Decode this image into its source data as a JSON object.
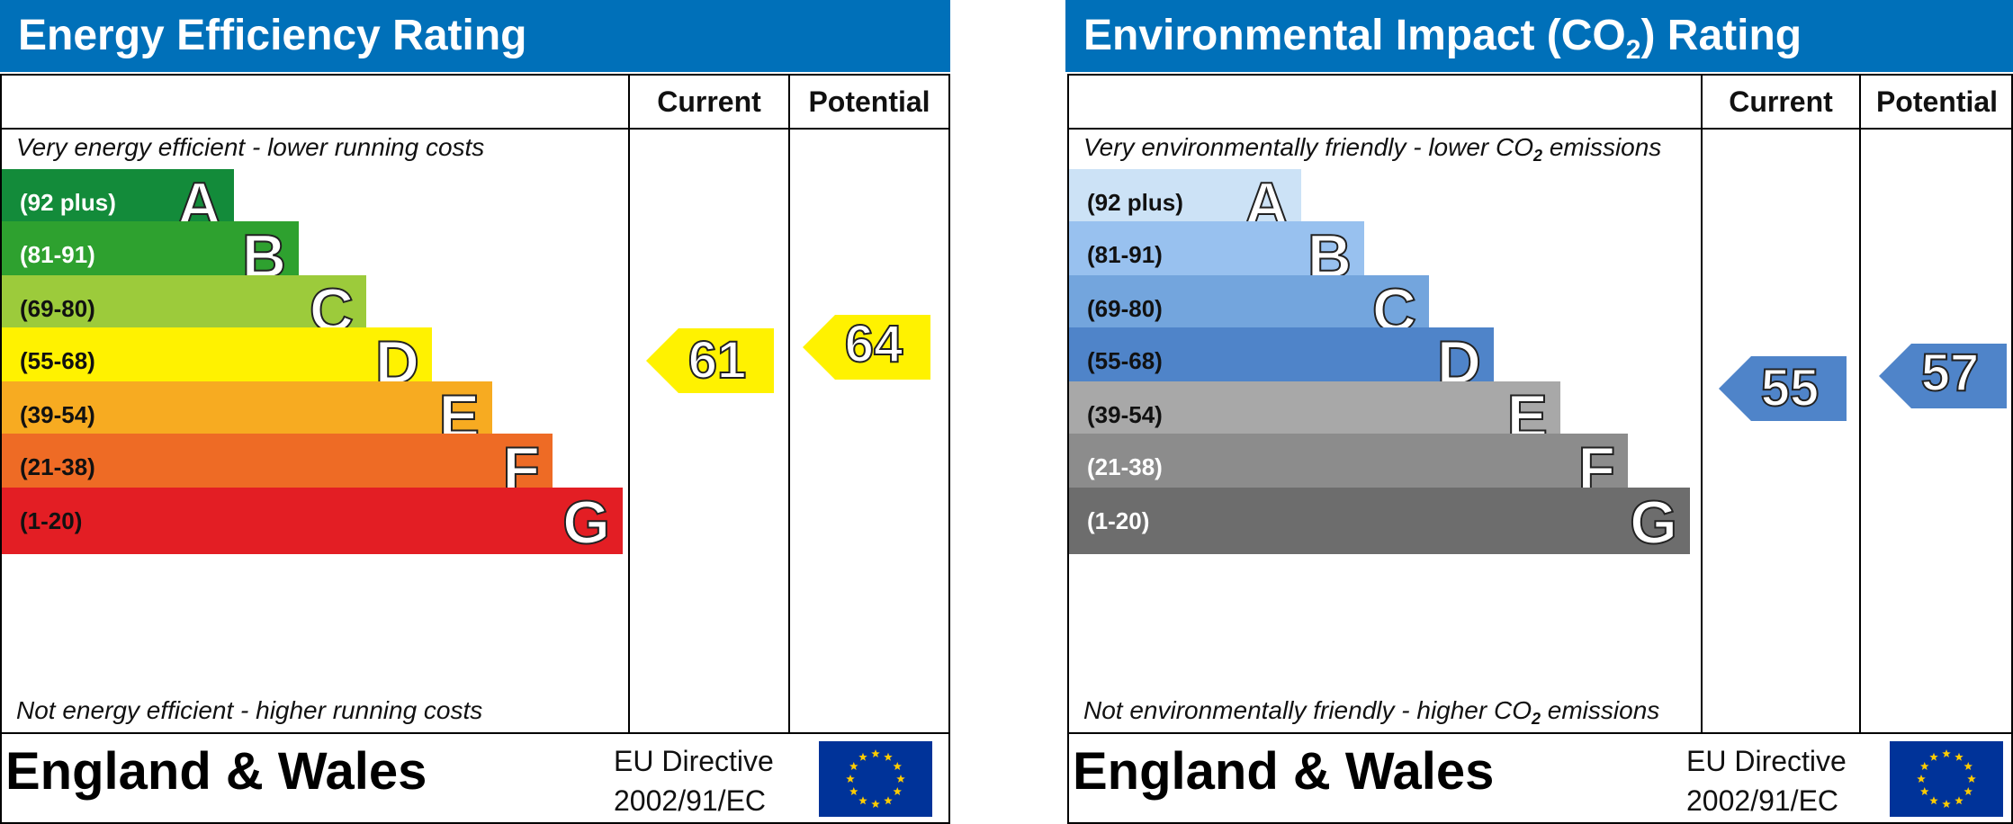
{
  "chart_data": [
    {
      "type": "bar",
      "title": "Energy Efficiency Rating",
      "columns": [
        "Current",
        "Potential"
      ],
      "top_caption": "Very energy efficient - lower running costs",
      "bottom_caption": "Not energy efficient - higher running costs",
      "bands": [
        {
          "range": "(92 plus)",
          "letter": "A",
          "color": "#138b3a",
          "text_color": "#ffffff"
        },
        {
          "range": "(81-91)",
          "letter": "B",
          "color": "#2ea12f",
          "text_color": "#ffffff"
        },
        {
          "range": "(69-80)",
          "letter": "C",
          "color": "#9ccb3b",
          "text_color": "#111111"
        },
        {
          "range": "(55-68)",
          "letter": "D",
          "color": "#fff200",
          "text_color": "#111111"
        },
        {
          "range": "(39-54)",
          "letter": "E",
          "color": "#f7ab21",
          "text_color": "#111111"
        },
        {
          "range": "(21-38)",
          "letter": "F",
          "color": "#ee6b25",
          "text_color": "#111111"
        },
        {
          "range": "(1-20)",
          "letter": "G",
          "color": "#e31e24",
          "text_color": "#111111"
        }
      ],
      "current": {
        "value": "61",
        "band": "D",
        "color": "#fff200"
      },
      "potential": {
        "value": "64",
        "band": "D",
        "color": "#fff200"
      },
      "footer_title": "England & Wales",
      "directive_line1": "EU Directive",
      "directive_line2": "2002/91/EC"
    },
    {
      "type": "bar",
      "title_pre": "Environmental Impact (CO",
      "title_sub": "2",
      "title_post": ") Rating",
      "columns": [
        "Current",
        "Potential"
      ],
      "top_caption_pre": "Very environmentally friendly - lower CO",
      "top_caption_sub": "2",
      "top_caption_post": " emissions",
      "bottom_caption_pre": "Not environmentally friendly - higher CO",
      "bottom_caption_sub": "2",
      "bottom_caption_post": " emissions",
      "bands": [
        {
          "range": "(92 plus)",
          "letter": "A",
          "color": "#cce2f6",
          "text_color": "#111111"
        },
        {
          "range": "(81-91)",
          "letter": "B",
          "color": "#98c1ef",
          "text_color": "#111111"
        },
        {
          "range": "(69-80)",
          "letter": "C",
          "color": "#73a5dd",
          "text_color": "#111111"
        },
        {
          "range": "(55-68)",
          "letter": "D",
          "color": "#4f84c9",
          "text_color": "#111111"
        },
        {
          "range": "(39-54)",
          "letter": "E",
          "color": "#a8a8a8",
          "text_color": "#111111"
        },
        {
          "range": "(21-38)",
          "letter": "F",
          "color": "#8c8c8c",
          "text_color": "#ffffff"
        },
        {
          "range": "(1-20)",
          "letter": "G",
          "color": "#6d6d6d",
          "text_color": "#ffffff"
        }
      ],
      "current": {
        "value": "55",
        "band": "D",
        "color": "#4f84c9"
      },
      "potential": {
        "value": "57",
        "band": "D",
        "color": "#4f84c9"
      },
      "footer_title": "England & Wales",
      "directive_line1": "EU Directive",
      "directive_line2": "2002/91/EC"
    }
  ]
}
